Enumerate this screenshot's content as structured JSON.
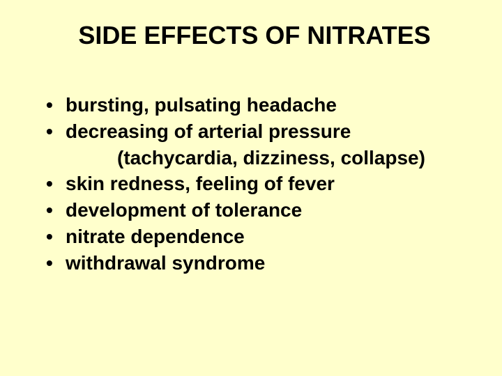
{
  "slide": {
    "background_color": "#ffffcc",
    "text_color": "#000000",
    "title": {
      "text": "SIDE EFFECTS OF NITRATES",
      "fontsize": 36,
      "fontweight": "bold",
      "align": "center"
    },
    "bullets": {
      "fontsize": 28,
      "fontweight": "bold",
      "marker": "•",
      "items": [
        {
          "text": "bursting, pulsating headache"
        },
        {
          "text": "decreasing of arterial pressure",
          "sub": "(tachycardia, dizziness, collapse)"
        },
        {
          "text": "skin redness, feeling of fever"
        },
        {
          "text": "development of tolerance"
        },
        {
          "text": "nitrate dependence"
        },
        {
          "text": "withdrawal syndrome"
        }
      ]
    }
  }
}
